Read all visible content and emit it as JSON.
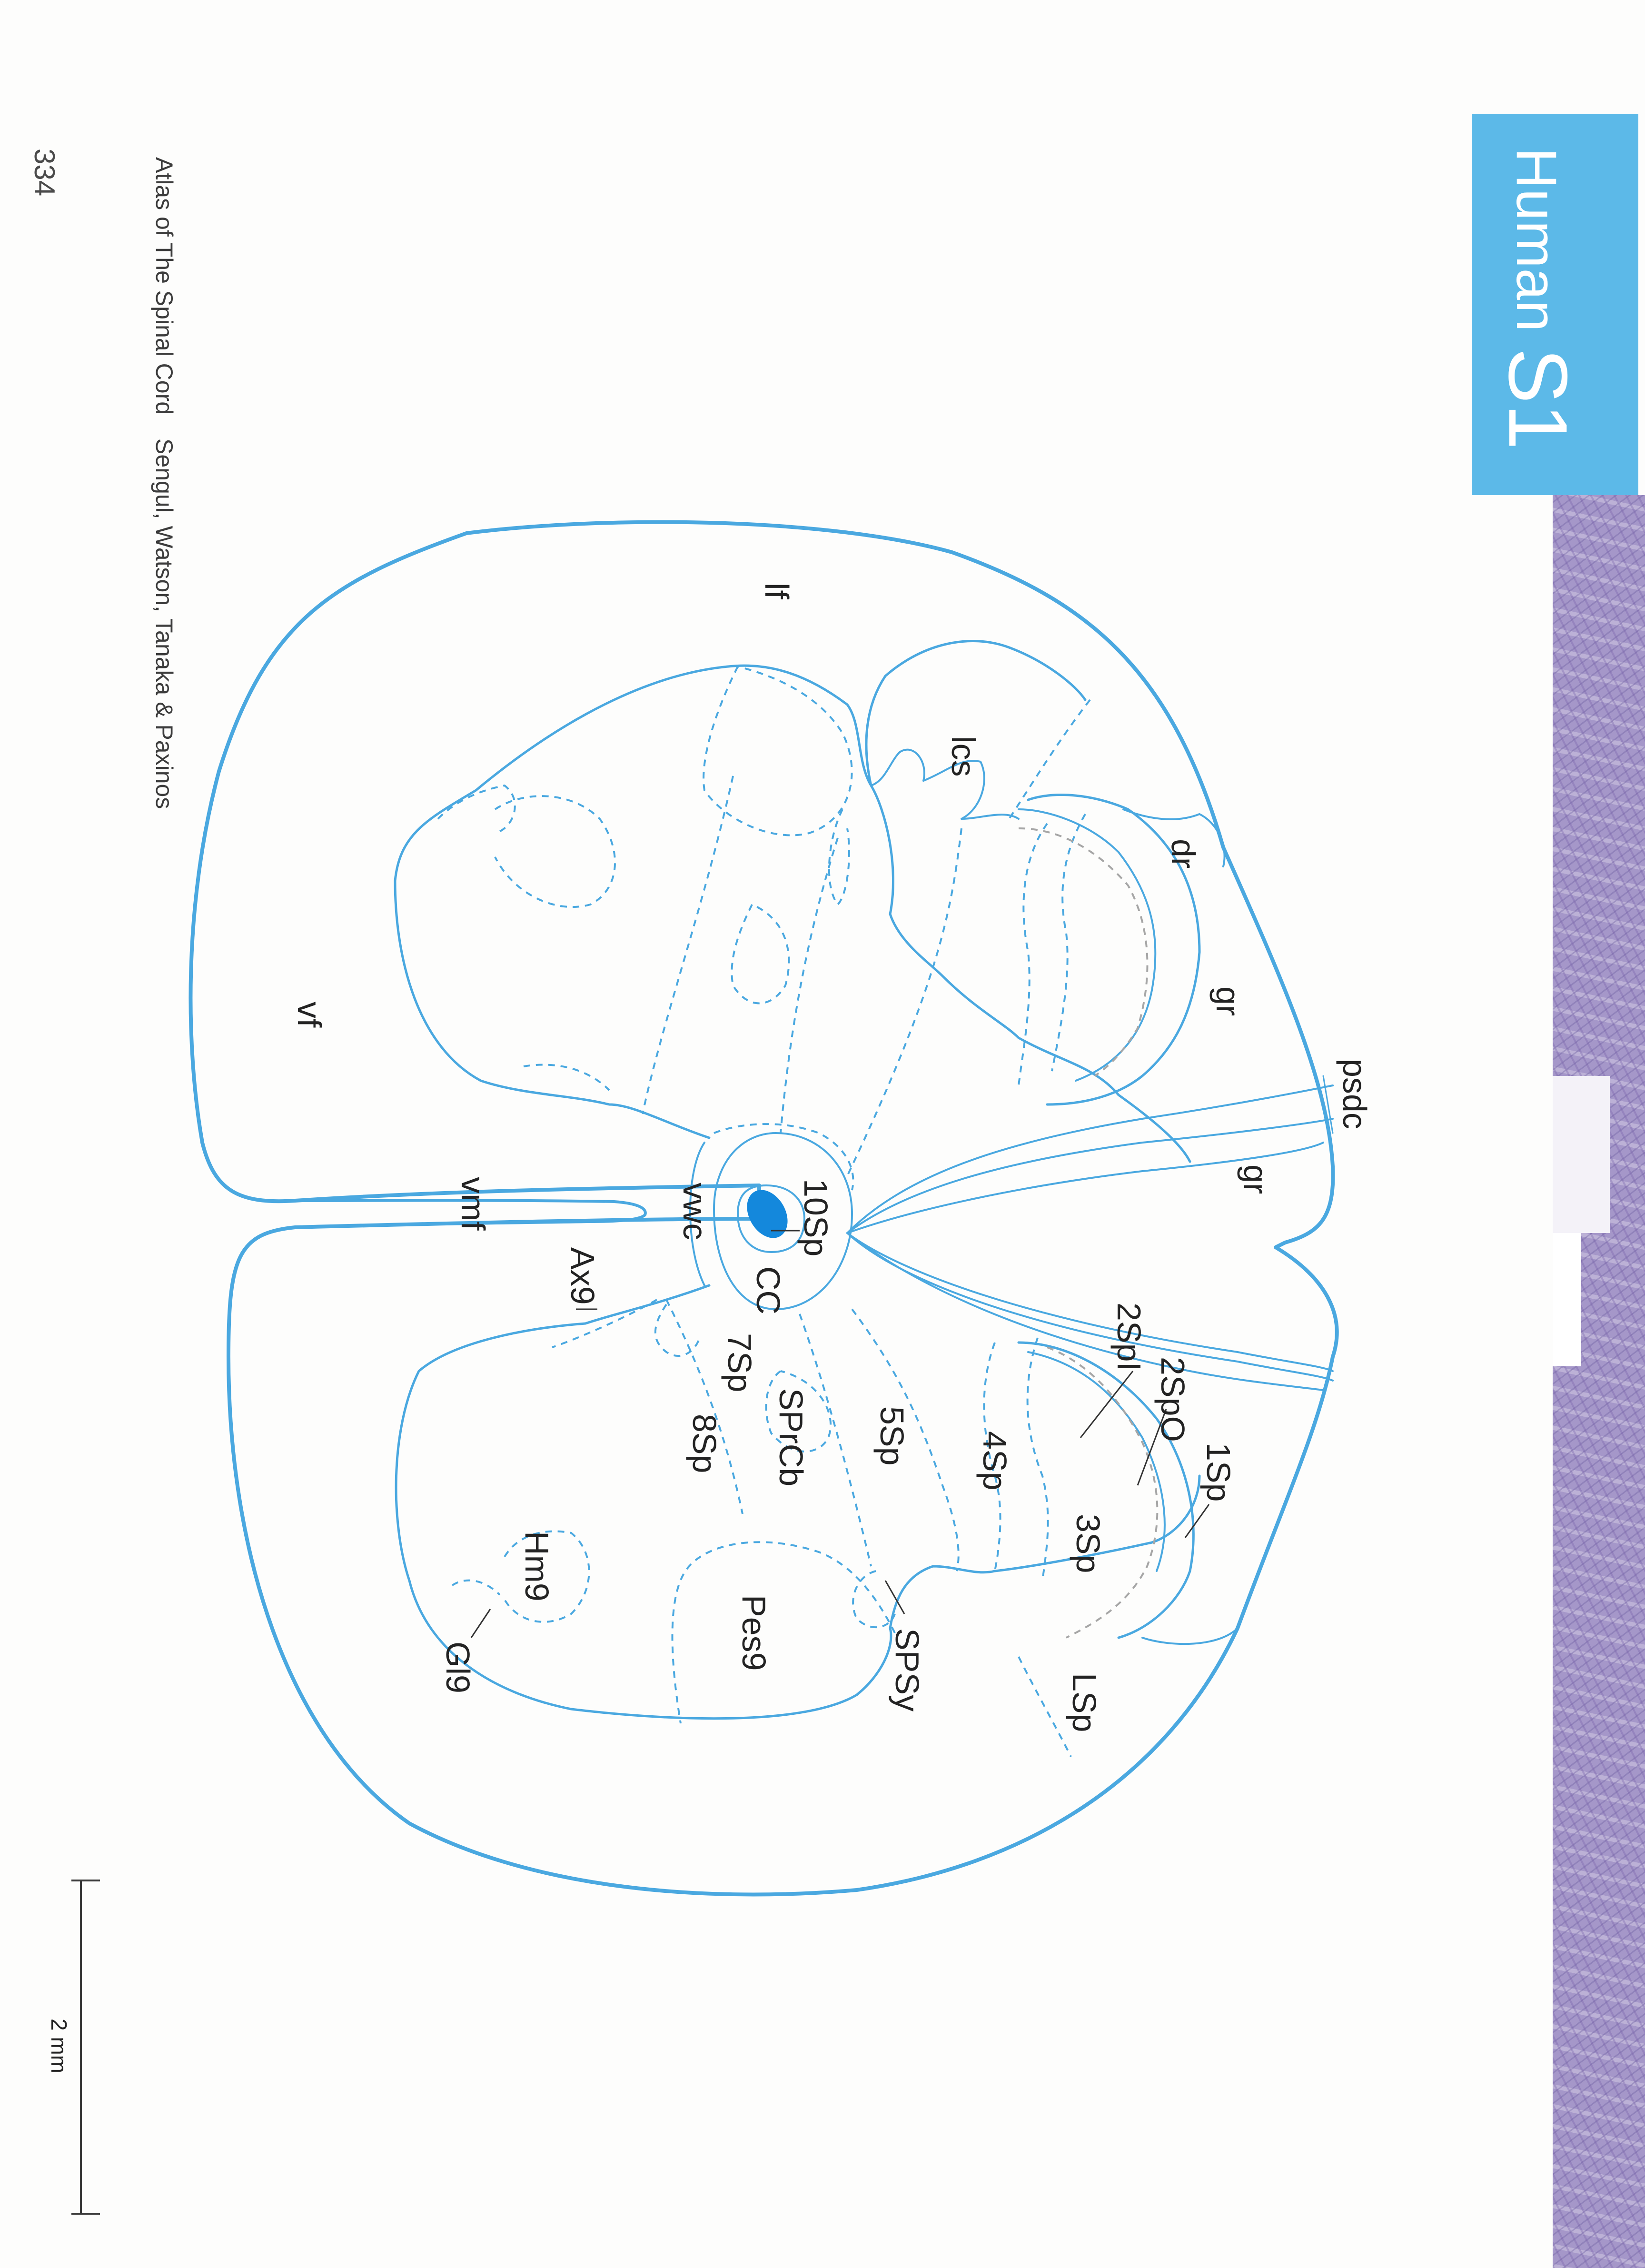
{
  "page": {
    "number": "334",
    "book_title": "Atlas of The Spinal Cord",
    "authors": "Sengul, Watson, Tanaka & Paxinos"
  },
  "tab": {
    "species": "Human",
    "level": "S1",
    "color": "#5cb9e8"
  },
  "diagram": {
    "outline_color": "#4aa8e0",
    "labels": {
      "lf": "lf",
      "lcs": "lcs",
      "dr": "dr",
      "gr_upper": "gr",
      "psdc": "psdc",
      "gr_lower": "gr",
      "vf": "vf",
      "vmf": "vmf",
      "vwc": "vwc",
      "sp10": "10Sp",
      "cc": "CC",
      "ax9": "Ax9",
      "sp7": "7Sp",
      "sprcb": "SPrCb",
      "sp5": "5Sp",
      "sp4": "4Sp",
      "sp2i": "2SpI",
      "sp2o": "2SpO",
      "sp1": "1Sp",
      "sp3": "3Sp",
      "sp8": "8Sp",
      "hm9": "Hm9",
      "gl9": "Gl9",
      "pes9": "Pes9",
      "spsy": "SPSy",
      "lsp": "LSp"
    }
  },
  "scale_bar": {
    "label": "2 mm"
  }
}
